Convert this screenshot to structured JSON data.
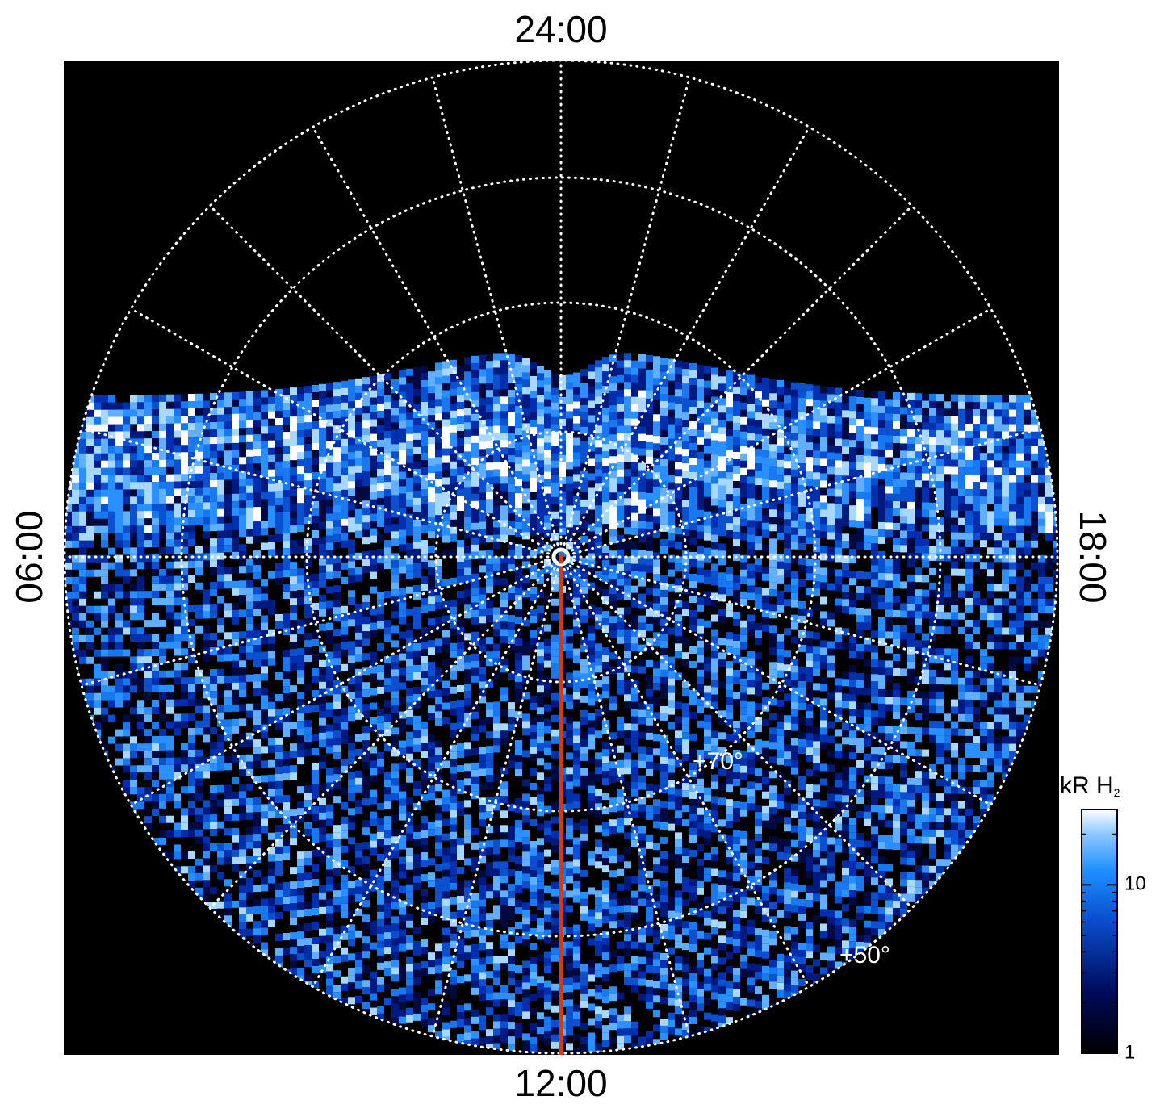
{
  "labels": {
    "top": "24:00",
    "bottom": "12:00",
    "left": "06:00",
    "right": "18:00"
  },
  "latitude_labels": [
    "+70°",
    "+50°"
  ],
  "colorbar": {
    "title": "kR H",
    "title_subscript": "2",
    "scale": "log",
    "range": [
      1,
      28
    ],
    "ticks": [
      1,
      10
    ],
    "minor_ticks": [
      2,
      3,
      4,
      5,
      6,
      7,
      8,
      9,
      20
    ]
  }
}
